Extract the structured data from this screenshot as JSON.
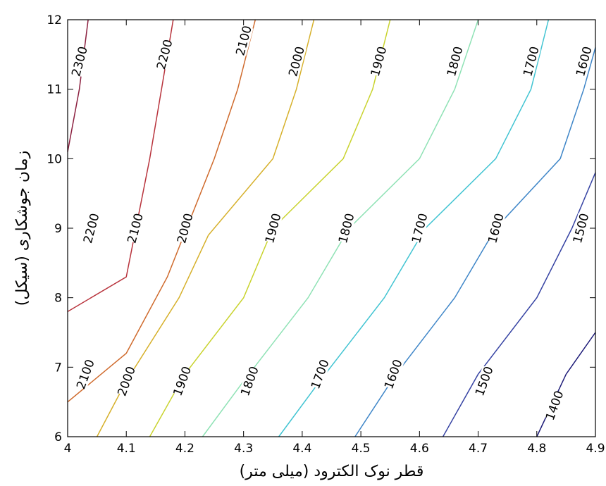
{
  "chart_data": {
    "type": "contour",
    "xlabel": "قطر نوک الکترود (میلی متر)",
    "ylabel": "زمان جوشکاری (سیکل)",
    "xlim": [
      4,
      4.9
    ],
    "ylim": [
      6,
      12
    ],
    "xticks": [
      4,
      4.1,
      4.2,
      4.3,
      4.4,
      4.5,
      4.6,
      4.7,
      4.8,
      4.9
    ],
    "xtick_labels": [
      "4",
      "4.1",
      "4.2",
      "4.3",
      "4.4",
      "4.5",
      "4.6",
      "4.7",
      "4.8",
      "4.9"
    ],
    "yticks": [
      6,
      7,
      8,
      9,
      10,
      11,
      12
    ],
    "ytick_labels": [
      "6",
      "7",
      "8",
      "9",
      "10",
      "11",
      "12"
    ],
    "grid": false,
    "contours": [
      {
        "level": 2300,
        "color": "#8b1f3f",
        "points": [
          [
            4.0,
            10.1
          ],
          [
            4.02,
            11.0
          ],
          [
            4.035,
            12.0
          ]
        ],
        "labels": [
          {
            "text": "2300",
            "x": 4.02,
            "y": 11.4,
            "angle": -75
          }
        ]
      },
      {
        "level": 2200,
        "color": "#b8333c",
        "points": [
          [
            4.0,
            7.8
          ],
          [
            4.1,
            8.3
          ],
          [
            4.14,
            10.0
          ],
          [
            4.16,
            11.0
          ],
          [
            4.18,
            12.0
          ]
        ],
        "labels": [
          {
            "text": "2200",
            "x": 4.04,
            "y": 9.0,
            "angle": -75
          },
          {
            "text": "2200",
            "x": 4.165,
            "y": 11.5,
            "angle": -75
          }
        ]
      },
      {
        "level": 2100,
        "color": "#cf6a2c",
        "points": [
          [
            4.0,
            6.5
          ],
          [
            4.1,
            7.2
          ],
          [
            4.17,
            8.3
          ],
          [
            4.25,
            10.0
          ],
          [
            4.29,
            11.0
          ],
          [
            4.32,
            12.0
          ]
        ],
        "labels": [
          {
            "text": "2100",
            "x": 4.03,
            "y": 6.9,
            "angle": -70
          },
          {
            "text": "2100",
            "x": 4.115,
            "y": 9.0,
            "angle": -75
          },
          {
            "text": "2100",
            "x": 4.3,
            "y": 11.7,
            "angle": -75
          }
        ]
      },
      {
        "level": 2000,
        "color": "#d6b02a",
        "points": [
          [
            4.05,
            6.0
          ],
          [
            4.1,
            6.8
          ],
          [
            4.19,
            8.0
          ],
          [
            4.24,
            8.9
          ],
          [
            4.35,
            10.0
          ],
          [
            4.39,
            11.0
          ],
          [
            4.42,
            12.0
          ]
        ],
        "labels": [
          {
            "text": "2000",
            "x": 4.1,
            "y": 6.8,
            "angle": -70
          },
          {
            "text": "2000",
            "x": 4.2,
            "y": 9.0,
            "angle": -75
          },
          {
            "text": "2000",
            "x": 4.39,
            "y": 11.4,
            "angle": -75
          }
        ]
      },
      {
        "level": 1900,
        "color": "#c9d32e",
        "points": [
          [
            4.14,
            6.0
          ],
          [
            4.2,
            6.9
          ],
          [
            4.3,
            8.0
          ],
          [
            4.35,
            9.0
          ],
          [
            4.47,
            10.0
          ],
          [
            4.52,
            11.0
          ],
          [
            4.55,
            12.0
          ]
        ],
        "labels": [
          {
            "text": "1900",
            "x": 4.195,
            "y": 6.8,
            "angle": -70
          },
          {
            "text": "1900",
            "x": 4.35,
            "y": 9.0,
            "angle": -75
          },
          {
            "text": "1900",
            "x": 4.53,
            "y": 11.4,
            "angle": -75
          }
        ]
      },
      {
        "level": 1800,
        "color": "#8fe2b5",
        "points": [
          [
            4.23,
            6.0
          ],
          [
            4.3,
            6.8
          ],
          [
            4.41,
            8.0
          ],
          [
            4.48,
            9.0
          ],
          [
            4.6,
            10.0
          ],
          [
            4.66,
            11.0
          ],
          [
            4.7,
            12.0
          ]
        ],
        "labels": [
          {
            "text": "1800",
            "x": 4.31,
            "y": 6.8,
            "angle": -70
          },
          {
            "text": "1800",
            "x": 4.475,
            "y": 9.0,
            "angle": -75
          },
          {
            "text": "1800",
            "x": 4.66,
            "y": 11.4,
            "angle": -75
          }
        ]
      },
      {
        "level": 1700,
        "color": "#41c4d2",
        "points": [
          [
            4.36,
            6.0
          ],
          [
            4.43,
            6.8
          ],
          [
            4.54,
            8.0
          ],
          [
            4.61,
            9.0
          ],
          [
            4.73,
            10.0
          ],
          [
            4.79,
            11.0
          ],
          [
            4.82,
            12.0
          ]
        ],
        "labels": [
          {
            "text": "1700",
            "x": 4.43,
            "y": 6.9,
            "angle": -70
          },
          {
            "text": "1700",
            "x": 4.6,
            "y": 9.0,
            "angle": -75
          },
          {
            "text": "1700",
            "x": 4.79,
            "y": 11.4,
            "angle": -75
          }
        ]
      },
      {
        "level": 1600,
        "color": "#3f86c8",
        "points": [
          [
            4.49,
            6.0
          ],
          [
            4.56,
            6.9
          ],
          [
            4.66,
            8.0
          ],
          [
            4.73,
            9.0
          ],
          [
            4.84,
            10.0
          ],
          [
            4.88,
            11.0
          ],
          [
            4.9,
            11.6
          ]
        ],
        "labels": [
          {
            "text": "1600",
            "x": 4.555,
            "y": 6.9,
            "angle": -70
          },
          {
            "text": "1600",
            "x": 4.73,
            "y": 9.0,
            "angle": -75
          },
          {
            "text": "1600",
            "x": 4.88,
            "y": 11.4,
            "angle": -75
          }
        ]
      },
      {
        "level": 1500,
        "color": "#3643a3",
        "points": [
          [
            4.64,
            6.0
          ],
          [
            4.7,
            6.9
          ],
          [
            4.8,
            8.0
          ],
          [
            4.86,
            9.0
          ],
          [
            4.9,
            9.8
          ]
        ],
        "labels": [
          {
            "text": "1500",
            "x": 4.71,
            "y": 6.8,
            "angle": -70
          },
          {
            "text": "1500",
            "x": 4.875,
            "y": 9.0,
            "angle": -75
          }
        ]
      },
      {
        "level": 1400,
        "color": "#1d1b78",
        "points": [
          [
            4.8,
            6.0
          ],
          [
            4.85,
            6.9
          ],
          [
            4.9,
            7.5
          ]
        ],
        "labels": [
          {
            "text": "1400",
            "x": 4.83,
            "y": 6.45,
            "angle": -70
          }
        ]
      }
    ]
  }
}
